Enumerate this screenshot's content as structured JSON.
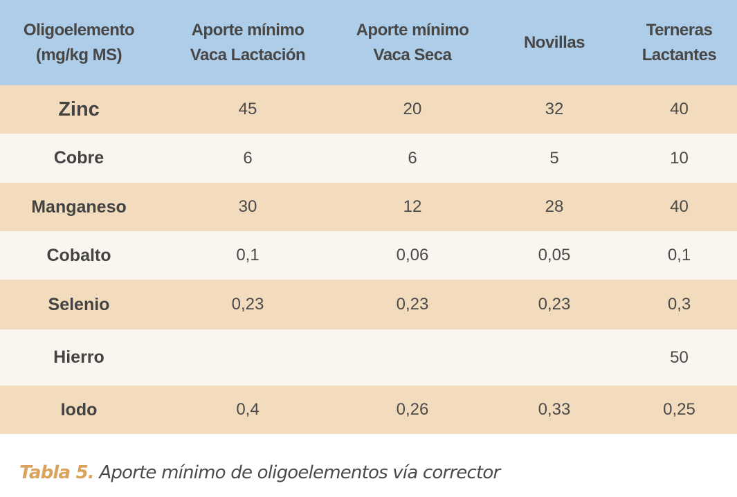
{
  "table": {
    "headers": [
      [
        "Oligoelemento",
        "(mg/kg MS)"
      ],
      [
        "Aporte mínimo",
        "Vaca Lactación"
      ],
      [
        "Aporte mínimo",
        "Vaca Seca"
      ],
      [
        "Novillas",
        ""
      ],
      [
        "Terneras",
        "Lactantes"
      ]
    ],
    "rows": [
      {
        "label": "Zinc",
        "values": [
          "45",
          "20",
          "32",
          "40"
        ]
      },
      {
        "label": "Cobre",
        "values": [
          "6",
          "6",
          "5",
          "10"
        ]
      },
      {
        "label": "Manganeso",
        "values": [
          "30",
          "12",
          "28",
          "40"
        ]
      },
      {
        "label": "Cobalto",
        "values": [
          "0,1",
          "0,06",
          "0,05",
          "0,1"
        ]
      },
      {
        "label": "Selenio",
        "values": [
          "0,23",
          "0,23",
          "0,23",
          "0,3"
        ]
      },
      {
        "label": "Hierro",
        "values": [
          "",
          "",
          "",
          "50"
        ]
      },
      {
        "label": "Iodo",
        "values": [
          "0,4",
          "0,26",
          "0,33",
          "0,25"
        ]
      }
    ],
    "colors": {
      "header_bg": "#aecde8",
      "row_tan": "#f2dcbd",
      "row_cream": "#faf5ef",
      "caption_accent": "#d9a35e"
    }
  },
  "caption": {
    "label": "Tabla 5.",
    "text": " Aporte mínimo de oligoelementos vía corrector"
  }
}
